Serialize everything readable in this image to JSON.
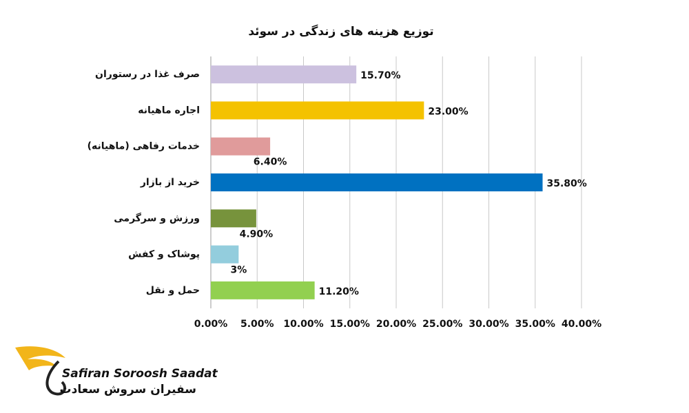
{
  "chart_data": {
    "type": "bar",
    "orientation": "horizontal",
    "title": "توزیع هزینه های زندگی در سوئد",
    "categories": [
      "صرف غذا در رستوران",
      "اجاره ماهیانه",
      "خدمات رفاهی (ماهیانه)",
      "خرید از بازار",
      "ورزش و سرگرمی",
      "پوشاک و کفش",
      "حمل و نقل"
    ],
    "values": [
      15.7,
      23,
      6.4,
      35.8,
      4.9,
      3,
      11.2
    ],
    "value_labels": [
      "15.70%",
      "23.00%",
      "6.40%",
      "35.80%",
      "4.90%",
      "3%",
      "11.20%"
    ],
    "colors": [
      "#ccc1df",
      "#f4c200",
      "#e09b9b",
      "#0071c1",
      "#77933c",
      "#93cddd",
      "#92d050"
    ],
    "xlim": [
      0,
      40
    ],
    "xticks": [
      {
        "value": 0,
        "label": "0.00%"
      },
      {
        "value": 5,
        "label": "5.00%"
      },
      {
        "value": 10,
        "label": "10.00%"
      },
      {
        "value": 15,
        "label": "15.00%"
      },
      {
        "value": 20,
        "label": "20.00%"
      },
      {
        "value": 25,
        "label": "25.00%"
      },
      {
        "value": 30,
        "label": "30.00%"
      },
      {
        "value": 35,
        "label": "35.00%"
      },
      {
        "value": 40,
        "label": "40.00%"
      }
    ],
    "grid": true
  },
  "logo": {
    "name": "Safiran Soroosh Saadat",
    "name_fa": "سفیران سروش سعادت"
  }
}
